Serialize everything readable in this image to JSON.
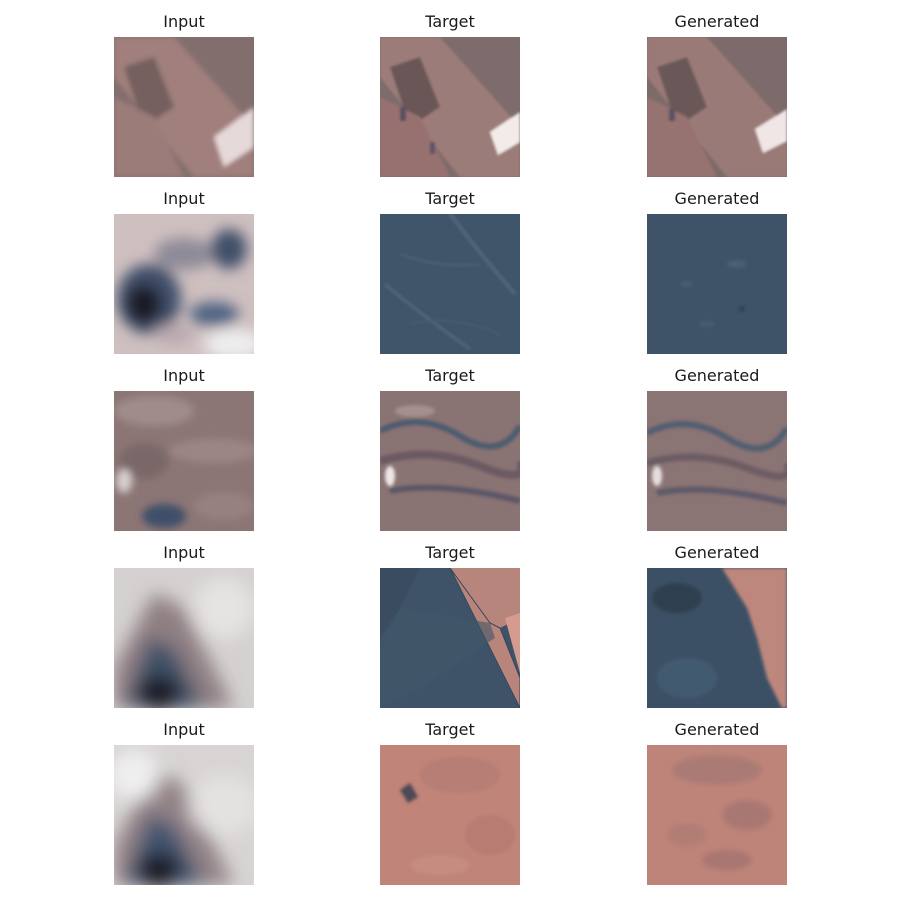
{
  "figure": {
    "rows": [
      {
        "input": {
          "title": "Input",
          "scene": "diagonal-structure-input"
        },
        "target": {
          "title": "Target",
          "scene": "diagonal-structure-target"
        },
        "generated": {
          "title": "Generated",
          "scene": "diagonal-structure-generated"
        }
      },
      {
        "input": {
          "title": "Input",
          "scene": "dark-blob-input"
        },
        "target": {
          "title": "Target",
          "scene": "slate-field-target"
        },
        "generated": {
          "title": "Generated",
          "scene": "slate-field-generated"
        }
      },
      {
        "input": {
          "title": "Input",
          "scene": "mauve-terrain-input"
        },
        "target": {
          "title": "Target",
          "scene": "mauve-terrain-target"
        },
        "generated": {
          "title": "Generated",
          "scene": "mauve-terrain-generated"
        }
      },
      {
        "input": {
          "title": "Input",
          "scene": "grey-wedge-input"
        },
        "target": {
          "title": "Target",
          "scene": "blue-pink-split-target"
        },
        "generated": {
          "title": "Generated",
          "scene": "blue-pink-split-generated"
        }
      },
      {
        "input": {
          "title": "Input",
          "scene": "grey-wedge-input"
        },
        "target": {
          "title": "Target",
          "scene": "salmon-field-target"
        },
        "generated": {
          "title": "Generated",
          "scene": "salmon-field-generated"
        }
      }
    ]
  },
  "colors": {
    "mauve": "#8c7572",
    "slate": "#3e5468",
    "salmon": "#c08377",
    "light_grey": "#d7d4d4",
    "dark": "#1c1f28"
  }
}
